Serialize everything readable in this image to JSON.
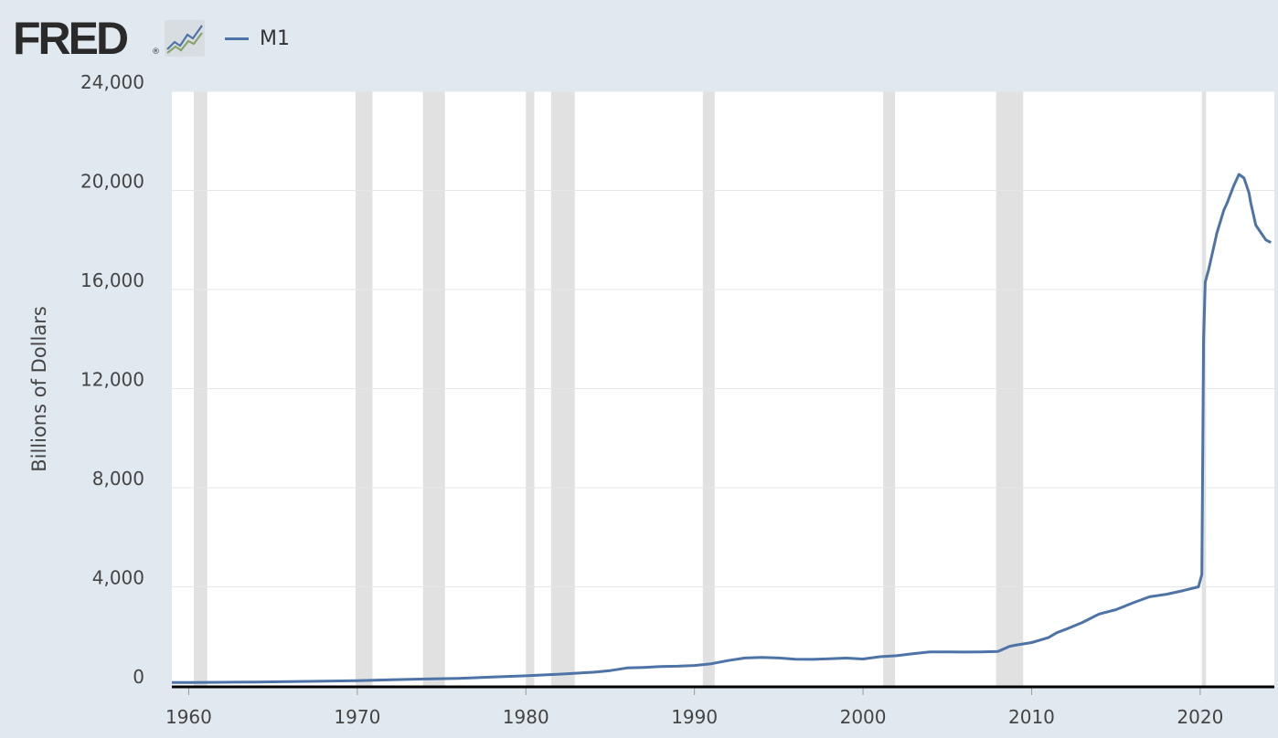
{
  "header": {
    "logo_text": "FRED",
    "logo_mark": "®",
    "logo_icon": "line-chart-icon"
  },
  "colors": {
    "background": "#e1e9f0",
    "plot_area": "#ffffff",
    "series": "#4e73a7",
    "recession": "#e1e1e1",
    "gridline": "#e6e6e6",
    "axis": "#000000",
    "logo_line_1": "#4e73a7",
    "logo_line_2": "#8aa36a"
  },
  "chart_data": {
    "type": "line",
    "title": "",
    "xlabel": "",
    "ylabel": "Billions of Dollars",
    "xlim": [
      1959,
      2024.4
    ],
    "ylim": [
      0,
      24000
    ],
    "y_ticks": [
      0,
      4000,
      8000,
      12000,
      16000,
      20000,
      24000
    ],
    "y_tick_labels": [
      "0",
      "4,000",
      "8,000",
      "12,000",
      "16,000",
      "20,000",
      "24,000"
    ],
    "x_ticks": [
      1960,
      1970,
      1980,
      1990,
      2000,
      2010,
      2020
    ],
    "x_tick_labels": [
      "1960",
      "1970",
      "1980",
      "1990",
      "2000",
      "2010",
      "2020"
    ],
    "grid": true,
    "legend_position": "top-left",
    "recessions": [
      [
        1960.3,
        1961.1
      ],
      [
        1969.9,
        1970.9
      ],
      [
        1973.9,
        1975.2
      ],
      [
        1980.0,
        1980.5
      ],
      [
        1981.5,
        1982.9
      ],
      [
        1990.5,
        1991.2
      ],
      [
        2001.2,
        2001.9
      ],
      [
        2007.9,
        2009.5
      ],
      [
        2020.1,
        2020.35
      ]
    ],
    "series": [
      {
        "name": "M1",
        "x": [
          1959,
          1960,
          1962,
          1964,
          1966,
          1968,
          1970,
          1972,
          1974,
          1976,
          1978,
          1980,
          1982,
          1984,
          1985,
          1986,
          1987,
          1988,
          1989,
          1990,
          1991,
          1992,
          1993,
          1994,
          1995,
          1996,
          1997,
          1998,
          1999,
          2000,
          2001,
          2002,
          2003,
          2004,
          2005,
          2006,
          2007,
          2008,
          2008.7,
          2009,
          2010,
          2011,
          2011.5,
          2012,
          2013,
          2014,
          2015,
          2016,
          2017,
          2018,
          2019,
          2019.9,
          2020.1,
          2020.2,
          2020.3,
          2020.5,
          2020.8,
          2021,
          2021.4,
          2021.6,
          2022,
          2022.3,
          2022.6,
          2022.9,
          2023,
          2023.3,
          2023.6,
          2023.9,
          2024.2
        ],
        "values": [
          139,
          141,
          147,
          160,
          172,
          197,
          215,
          250,
          280,
          305,
          356,
          408,
          474,
          552,
          620,
          725,
          750,
          786,
          795,
          825,
          897,
          1025,
          1129,
          1150,
          1127,
          1081,
          1073,
          1097,
          1124,
          1088,
          1180,
          1220,
          1306,
          1376,
          1375,
          1367,
          1375,
          1390,
          1600,
          1640,
          1750,
          1950,
          2150,
          2280,
          2560,
          2900,
          3080,
          3350,
          3600,
          3700,
          3850,
          4000,
          4500,
          14000,
          16300,
          16800,
          17700,
          18300,
          19200,
          19500,
          20200,
          20650,
          20500,
          19900,
          19500,
          18600,
          18300,
          18000,
          17900
        ]
      }
    ]
  }
}
